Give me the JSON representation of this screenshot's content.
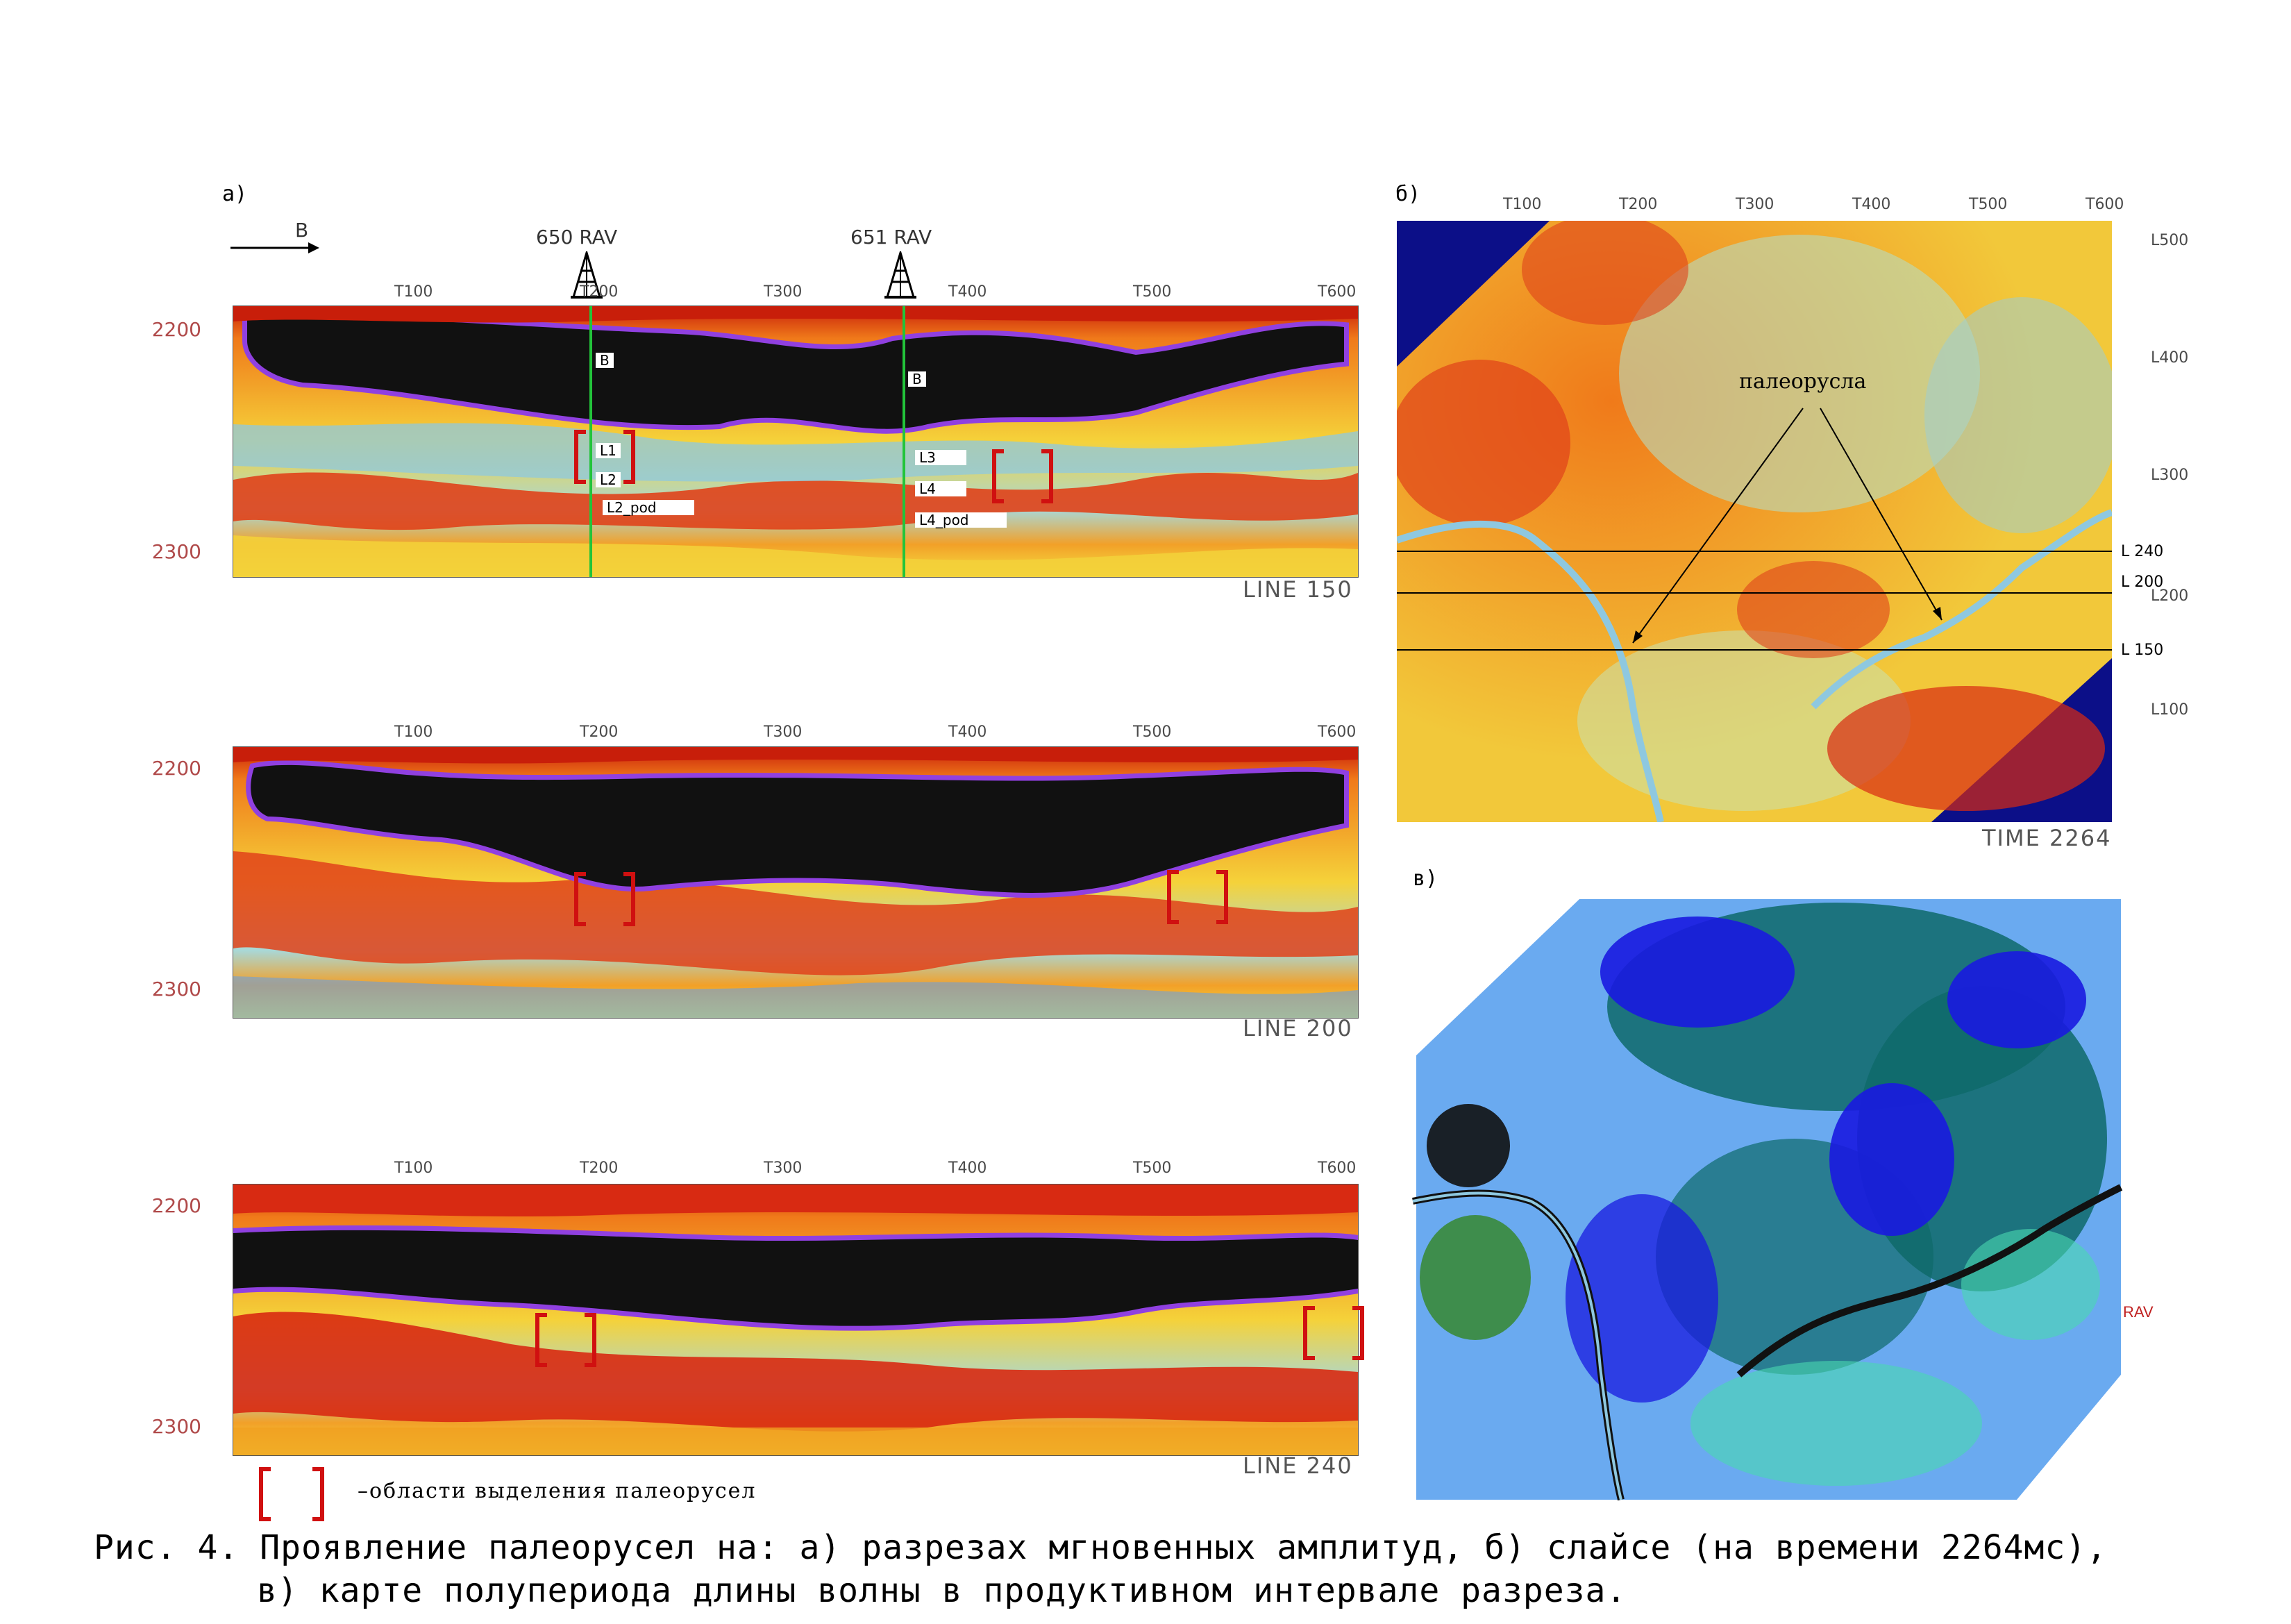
{
  "panel_a": {
    "letter": "a)",
    "direction_label": "В",
    "wells": [
      {
        "label": "650 RAV"
      },
      {
        "label": "651 RAV"
      }
    ],
    "trace_ticks": [
      "T100",
      "T200",
      "T300",
      "T400",
      "T500",
      "T600"
    ],
    "time_ticks": [
      "2200",
      "2300"
    ],
    "horizons_well1": [
      "B",
      "L1",
      "L2",
      "L2_pod"
    ],
    "horizons_well2": [
      "B",
      "L3",
      "L4",
      "L4_pod"
    ],
    "sections": [
      {
        "label": "LINE 150"
      },
      {
        "label": "LINE 200"
      },
      {
        "label": "LINE 240"
      }
    ],
    "legend_text": "–области выделения палеорусел"
  },
  "panel_b": {
    "letter": "б)",
    "top_ticks": [
      "T100",
      "T200",
      "T300",
      "T400",
      "T500",
      "T600"
    ],
    "right_ticks": [
      "L500",
      "L400",
      "L300",
      "L200",
      "L100"
    ],
    "lines": [
      "L 240",
      "L 200",
      "L 150"
    ],
    "annotation": "палеорусла",
    "time_label": "TIME 2264"
  },
  "panel_c": {
    "letter": "в)",
    "well_label": "RAV"
  },
  "caption": {
    "line1": "Рис. 4. Проявление палеорусел на: а) разрезах мгновенных амплитуд, б) слайсе (на времени 2264мс),",
    "line2": "в) карте полупериода длины волны в продуктивном интервале разреза."
  },
  "colors": {
    "black_band": "#111111",
    "red": "#d43a1a",
    "orange": "#f07a1a",
    "yellow": "#f2e24a",
    "light_blue": "#a8d8d8",
    "navy": "#0c0f88",
    "green_well": "#22c43a",
    "bracket_red": "#d01010"
  }
}
